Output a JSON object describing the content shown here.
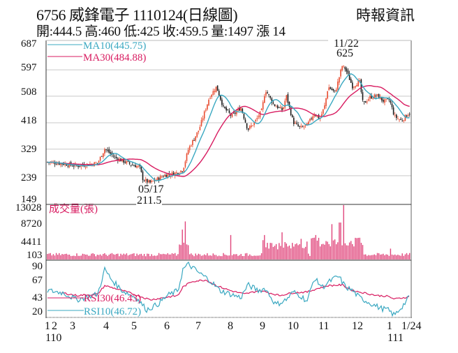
{
  "header": {
    "title": "6756  威鋒電子 1110124(日線圖)",
    "brand": "時報資訊",
    "summary": "開:444.5 高:460 低:425 收:459.5 量:1497 漲 14"
  },
  "colors": {
    "ma10": "#3aa8c1",
    "ma30": "#d81b60",
    "up": "#e84a2e",
    "down": "#1a1a1a",
    "volume": "#e0457b",
    "grid": "#cccccc",
    "volume_label": "#d81b60"
  },
  "legend": {
    "ma10": "MA10(445.75)",
    "ma30": "MA30(484.88)",
    "volume": "成交量(張)",
    "rsi30": "RSI30(46.43)",
    "rsi10": "RSI10(46.72)"
  },
  "annotations": {
    "high_date": "11/22",
    "high_value": "625",
    "low_date": "05/17",
    "low_value": "211.5"
  },
  "x_axis": {
    "labels": [
      "1",
      "2",
      "3",
      "4",
      "5",
      "6",
      "7",
      "8",
      "9",
      "10",
      "11",
      "12",
      "1",
      "1/24"
    ],
    "year_labels": [
      "110",
      "111"
    ]
  },
  "chart_data": [
    {
      "type": "candlestick",
      "title": "6756 威鋒電子 1110124(日線圖)",
      "ylabel": "",
      "ylim": [
        149,
        687
      ],
      "yticks": [
        149,
        239,
        329,
        418,
        508,
        597,
        687
      ],
      "categories": [
        "1",
        "2",
        "3",
        "4",
        "5",
        "6",
        "7",
        "8",
        "9",
        "10",
        "11",
        "12",
        "1",
        "1/24"
      ],
      "series": [
        {
          "name": "MA10",
          "last": 445.75
        },
        {
          "name": "MA30",
          "last": 484.88
        }
      ],
      "approx_close_by_month": [
        285,
        280,
        275,
        305,
        285,
        245,
        330,
        500,
        430,
        460,
        410,
        555,
        515,
        459.5
      ],
      "annotations": [
        {
          "label": "11/22",
          "value": 625,
          "type": "high"
        },
        {
          "label": "05/17",
          "value": 211.5,
          "type": "low"
        }
      ],
      "last_bar": {
        "open": 444.5,
        "high": 460,
        "low": 425,
        "close": 459.5,
        "volume": 1497,
        "change": 14
      },
      "grid": true
    },
    {
      "type": "bar",
      "title": "成交量(張)",
      "ylim": [
        103,
        13028
      ],
      "yticks": [
        103,
        4411,
        8720,
        13028
      ],
      "approx_peaks": [
        {
          "month": "6",
          "value": 7200
        },
        {
          "month": "8",
          "value": 6800
        },
        {
          "month": "11",
          "value": 13028
        }
      ],
      "last": 1497
    },
    {
      "type": "line",
      "title": "RSI",
      "ylim": [
        20,
        90
      ],
      "yticks": [
        20,
        43,
        67,
        90
      ],
      "series": [
        {
          "name": "RSI30",
          "last": 46.43
        },
        {
          "name": "RSI10",
          "last": 46.72
        }
      ]
    }
  ]
}
